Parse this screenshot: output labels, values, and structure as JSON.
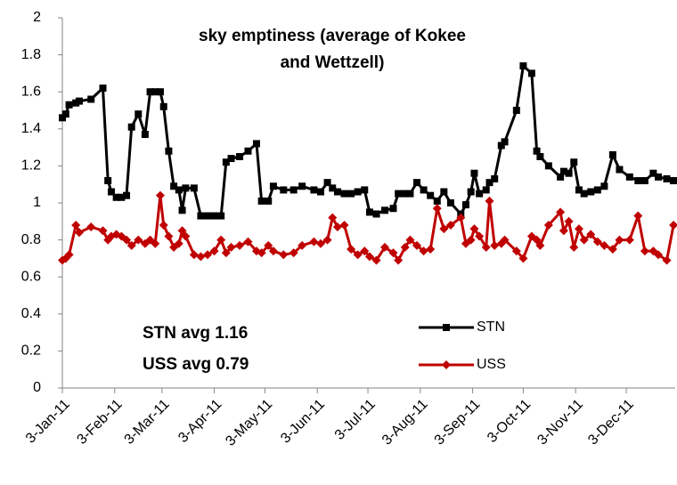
{
  "chart_data": {
    "type": "line",
    "title": "sky emptiness (average of Kokee and Wettzell)",
    "annotations": [
      "STN avg 1.16",
      "USS avg 0.79"
    ],
    "x": [
      "2011-01-03",
      "2011-01-05",
      "2011-01-07",
      "2011-01-11",
      "2011-01-13",
      "2011-01-20",
      "2011-01-27",
      "2011-01-30",
      "2011-02-01",
      "2011-02-04",
      "2011-02-07",
      "2011-02-10",
      "2011-02-13",
      "2011-02-17",
      "2011-02-21",
      "2011-02-24",
      "2011-02-27",
      "2011-03-02",
      "2011-03-04",
      "2011-03-07",
      "2011-03-10",
      "2011-03-13",
      "2011-03-15",
      "2011-03-17",
      "2011-03-22",
      "2011-03-26",
      "2011-03-30",
      "2011-04-03",
      "2011-04-07",
      "2011-04-10",
      "2011-04-13",
      "2011-04-18",
      "2011-04-23",
      "2011-04-28",
      "2011-05-01",
      "2011-05-05",
      "2011-05-08",
      "2011-05-14",
      "2011-05-20",
      "2011-05-25",
      "2011-06-01",
      "2011-06-05",
      "2011-06-09",
      "2011-06-12",
      "2011-06-15",
      "2011-06-19",
      "2011-06-23",
      "2011-06-27",
      "2011-07-01",
      "2011-07-04",
      "2011-07-08",
      "2011-07-13",
      "2011-07-18",
      "2011-07-21",
      "2011-07-25",
      "2011-07-28",
      "2011-08-01",
      "2011-08-05",
      "2011-08-09",
      "2011-08-13",
      "2011-08-17",
      "2011-08-21",
      "2011-08-27",
      "2011-08-30",
      "2011-09-02",
      "2011-09-04",
      "2011-09-07",
      "2011-09-11",
      "2011-09-13",
      "2011-09-16",
      "2011-09-20",
      "2011-09-22",
      "2011-09-29",
      "2011-10-03",
      "2011-10-08",
      "2011-10-11",
      "2011-10-13",
      "2011-10-18",
      "2011-10-25",
      "2011-10-27",
      "2011-10-30",
      "2011-11-02",
      "2011-11-05",
      "2011-11-08",
      "2011-11-12",
      "2011-11-16",
      "2011-11-20",
      "2011-11-25",
      "2011-11-29",
      "2011-12-05",
      "2011-12-10",
      "2011-12-14",
      "2011-12-19",
      "2011-12-22",
      "2011-12-27",
      "2011-12-31"
    ],
    "series": [
      {
        "name": "STN",
        "color": "#000000",
        "marker": "square",
        "values": [
          1.46,
          1.48,
          1.53,
          1.54,
          1.55,
          1.56,
          1.62,
          1.12,
          1.06,
          1.03,
          1.03,
          1.04,
          1.41,
          1.48,
          1.37,
          1.6,
          1.6,
          1.6,
          1.52,
          1.28,
          1.09,
          1.07,
          0.96,
          1.08,
          1.08,
          0.93,
          0.93,
          0.93,
          0.93,
          1.22,
          1.24,
          1.25,
          1.28,
          1.32,
          1.01,
          1.01,
          1.09,
          1.07,
          1.07,
          1.09,
          1.07,
          1.06,
          1.11,
          1.08,
          1.06,
          1.05,
          1.05,
          1.06,
          1.07,
          0.95,
          0.94,
          0.96,
          0.97,
          1.05,
          1.05,
          1.05,
          1.11,
          1.07,
          1.04,
          1.01,
          1.06,
          1.0,
          0.94,
          0.99,
          1.06,
          1.16,
          1.05,
          1.07,
          1.11,
          1.13,
          1.31,
          1.33,
          1.5,
          1.74,
          1.7,
          1.28,
          1.25,
          1.2,
          1.14,
          1.17,
          1.16,
          1.22,
          1.07,
          1.05,
          1.06,
          1.07,
          1.09,
          1.26,
          1.18,
          1.14,
          1.12,
          1.12,
          1.16,
          1.14,
          1.13,
          1.12
        ]
      },
      {
        "name": "USS",
        "color": "#c00000",
        "marker": "diamond",
        "values": [
          0.69,
          0.7,
          0.72,
          0.88,
          0.84,
          0.87,
          0.85,
          0.8,
          0.82,
          0.83,
          0.82,
          0.8,
          0.77,
          0.8,
          0.78,
          0.8,
          0.78,
          1.04,
          0.88,
          0.82,
          0.76,
          0.78,
          0.85,
          0.82,
          0.72,
          0.71,
          0.72,
          0.74,
          0.8,
          0.73,
          0.76,
          0.77,
          0.79,
          0.74,
          0.73,
          0.77,
          0.74,
          0.72,
          0.73,
          0.77,
          0.79,
          0.78,
          0.8,
          0.92,
          0.87,
          0.88,
          0.75,
          0.72,
          0.74,
          0.71,
          0.69,
          0.76,
          0.73,
          0.69,
          0.76,
          0.8,
          0.77,
          0.74,
          0.75,
          0.97,
          0.86,
          0.88,
          0.92,
          0.78,
          0.8,
          0.86,
          0.82,
          0.76,
          1.01,
          0.77,
          0.78,
          0.8,
          0.74,
          0.7,
          0.82,
          0.8,
          0.77,
          0.88,
          0.95,
          0.85,
          0.9,
          0.76,
          0.86,
          0.8,
          0.83,
          0.79,
          0.77,
          0.75,
          0.8,
          0.8,
          0.93,
          0.74,
          0.74,
          0.72,
          0.69,
          0.88
        ]
      }
    ],
    "xlim": [
      "2011-01-03",
      "2012-01-01"
    ],
    "xticks": [
      {
        "value": "2011-01-03",
        "label": "3-Jan-11"
      },
      {
        "value": "2011-02-03",
        "label": "3-Feb-11"
      },
      {
        "value": "2011-03-03",
        "label": "3-Mar-11"
      },
      {
        "value": "2011-04-03",
        "label": "3-Apr-11"
      },
      {
        "value": "2011-05-03",
        "label": "3-May-11"
      },
      {
        "value": "2011-06-03",
        "label": "3-Jun-11"
      },
      {
        "value": "2011-07-03",
        "label": "3-Jul-11"
      },
      {
        "value": "2011-08-03",
        "label": "3-Aug-11"
      },
      {
        "value": "2011-09-03",
        "label": "3-Sep-11"
      },
      {
        "value": "2011-10-03",
        "label": "3-Oct-11"
      },
      {
        "value": "2011-11-03",
        "label": "3-Nov-11"
      },
      {
        "value": "2011-12-03",
        "label": "3-Dec-11"
      }
    ],
    "ylim": [
      0,
      2
    ],
    "yticks": [
      0,
      0.2,
      0.4,
      0.6,
      0.8,
      1,
      1.2,
      1.4,
      1.6,
      1.8,
      2
    ],
    "grid": false
  }
}
